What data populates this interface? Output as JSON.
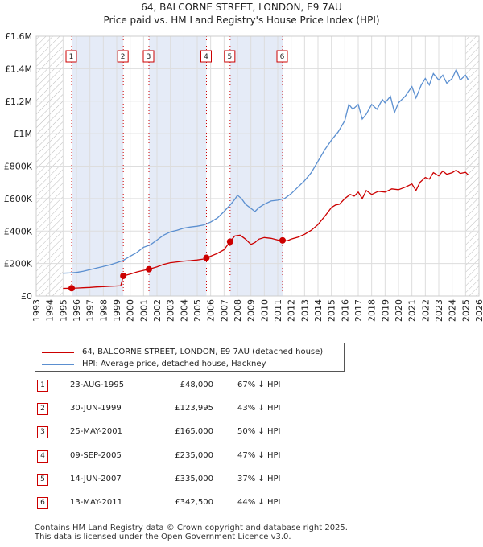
{
  "title": {
    "line1": "64, BALCORNE STREET, LONDON, E9 7AU",
    "line2": "Price paid vs. HM Land Registry's House Price Index (HPI)"
  },
  "chart_data": {
    "type": "line",
    "title": "64, BALCORNE STREET, LONDON, E9 7AU — Price paid vs. HM Land Registry's House Price Index (HPI)",
    "xlim": [
      1993,
      2026
    ],
    "ylim": [
      0,
      1600000
    ],
    "yticks": [
      {
        "value": 0,
        "label": "£0"
      },
      {
        "value": 200000,
        "label": "£200K"
      },
      {
        "value": 400000,
        "label": "£400K"
      },
      {
        "value": 600000,
        "label": "£600K"
      },
      {
        "value": 800000,
        "label": "£800K"
      },
      {
        "value": 1000000,
        "label": "£1M"
      },
      {
        "value": 1200000,
        "label": "£1.2M"
      },
      {
        "value": 1400000,
        "label": "£1.4M"
      },
      {
        "value": 1600000,
        "label": "£1.6M"
      }
    ],
    "xticks": [
      "1993",
      "1994",
      "1995",
      "1996",
      "1997",
      "1998",
      "1999",
      "2000",
      "2001",
      "2002",
      "2003",
      "2004",
      "2005",
      "2006",
      "2007",
      "2008",
      "2009",
      "2010",
      "2011",
      "2012",
      "2013",
      "2014",
      "2015",
      "2016",
      "2017",
      "2018",
      "2019",
      "2020",
      "2021",
      "2022",
      "2023",
      "2024",
      "2025",
      "2026"
    ],
    "hatched_ranges": [
      [
        1993,
        1995
      ],
      [
        2025.0,
        2026
      ]
    ],
    "sale_shading": [
      [
        1995.64,
        1999.49
      ],
      [
        2001.4,
        2005.69
      ],
      [
        2007.45,
        2011.36
      ]
    ],
    "series": [
      {
        "name": "64, BALCORNE STREET, LONDON, E9 7AU (detached house)",
        "color": "#cc0000",
        "points": [
          [
            1995.0,
            47000
          ],
          [
            1995.64,
            48000
          ],
          [
            1996.0,
            49000
          ],
          [
            1996.5,
            51000
          ],
          [
            1997.0,
            53000
          ],
          [
            1997.5,
            56000
          ],
          [
            1998.0,
            58000
          ],
          [
            1998.5,
            60000
          ],
          [
            1999.0,
            62000
          ],
          [
            1999.3,
            63000
          ],
          [
            1999.49,
            123995
          ],
          [
            2000.0,
            135000
          ],
          [
            2000.5,
            148000
          ],
          [
            2001.0,
            158000
          ],
          [
            2001.4,
            165000
          ],
          [
            2002.0,
            180000
          ],
          [
            2002.5,
            195000
          ],
          [
            2003.0,
            205000
          ],
          [
            2003.5,
            210000
          ],
          [
            2004.0,
            215000
          ],
          [
            2004.5,
            218000
          ],
          [
            2005.0,
            222000
          ],
          [
            2005.5,
            228000
          ],
          [
            2005.69,
            235000
          ],
          [
            2006.0,
            245000
          ],
          [
            2006.5,
            262000
          ],
          [
            2007.0,
            285000
          ],
          [
            2007.45,
            335000
          ],
          [
            2007.8,
            370000
          ],
          [
            2008.2,
            375000
          ],
          [
            2008.6,
            350000
          ],
          [
            2009.0,
            318000
          ],
          [
            2009.3,
            330000
          ],
          [
            2009.6,
            350000
          ],
          [
            2010.0,
            360000
          ],
          [
            2010.5,
            355000
          ],
          [
            2011.0,
            345000
          ],
          [
            2011.36,
            342500
          ],
          [
            2011.7,
            340000
          ],
          [
            2012.0,
            350000
          ],
          [
            2012.5,
            362000
          ],
          [
            2013.0,
            380000
          ],
          [
            2013.5,
            405000
          ],
          [
            2014.0,
            440000
          ],
          [
            2014.5,
            490000
          ],
          [
            2015.0,
            545000
          ],
          [
            2015.3,
            560000
          ],
          [
            2015.6,
            565000
          ],
          [
            2016.0,
            600000
          ],
          [
            2016.4,
            625000
          ],
          [
            2016.7,
            615000
          ],
          [
            2017.0,
            640000
          ],
          [
            2017.3,
            600000
          ],
          [
            2017.6,
            650000
          ],
          [
            2018.0,
            625000
          ],
          [
            2018.5,
            645000
          ],
          [
            2019.0,
            640000
          ],
          [
            2019.5,
            660000
          ],
          [
            2020.0,
            655000
          ],
          [
            2020.5,
            670000
          ],
          [
            2021.0,
            690000
          ],
          [
            2021.3,
            650000
          ],
          [
            2021.6,
            700000
          ],
          [
            2022.0,
            730000
          ],
          [
            2022.3,
            720000
          ],
          [
            2022.6,
            760000
          ],
          [
            2023.0,
            740000
          ],
          [
            2023.3,
            770000
          ],
          [
            2023.6,
            750000
          ],
          [
            2024.0,
            760000
          ],
          [
            2024.3,
            775000
          ],
          [
            2024.6,
            755000
          ],
          [
            2025.0,
            762000
          ],
          [
            2025.2,
            745000
          ]
        ]
      },
      {
        "name": "HPI: Average price, detached house, Hackney",
        "color": "#5b8fd0",
        "points": [
          [
            1995.0,
            140000
          ],
          [
            1995.5,
            142000
          ],
          [
            1996.0,
            145000
          ],
          [
            1996.5,
            152000
          ],
          [
            1997.0,
            162000
          ],
          [
            1997.5,
            172000
          ],
          [
            1998.0,
            182000
          ],
          [
            1998.5,
            192000
          ],
          [
            1999.0,
            205000
          ],
          [
            1999.5,
            220000
          ],
          [
            2000.0,
            245000
          ],
          [
            2000.5,
            268000
          ],
          [
            2001.0,
            300000
          ],
          [
            2001.5,
            315000
          ],
          [
            2002.0,
            345000
          ],
          [
            2002.5,
            375000
          ],
          [
            2003.0,
            395000
          ],
          [
            2003.5,
            405000
          ],
          [
            2004.0,
            418000
          ],
          [
            2004.5,
            425000
          ],
          [
            2005.0,
            430000
          ],
          [
            2005.5,
            438000
          ],
          [
            2006.0,
            455000
          ],
          [
            2006.5,
            480000
          ],
          [
            2007.0,
            520000
          ],
          [
            2007.5,
            565000
          ],
          [
            2007.8,
            595000
          ],
          [
            2008.0,
            620000
          ],
          [
            2008.3,
            600000
          ],
          [
            2008.6,
            565000
          ],
          [
            2009.0,
            540000
          ],
          [
            2009.3,
            520000
          ],
          [
            2009.6,
            545000
          ],
          [
            2010.0,
            565000
          ],
          [
            2010.5,
            585000
          ],
          [
            2011.0,
            590000
          ],
          [
            2011.5,
            600000
          ],
          [
            2012.0,
            630000
          ],
          [
            2012.5,
            670000
          ],
          [
            2013.0,
            710000
          ],
          [
            2013.5,
            760000
          ],
          [
            2014.0,
            830000
          ],
          [
            2014.5,
            900000
          ],
          [
            2015.0,
            960000
          ],
          [
            2015.5,
            1010000
          ],
          [
            2016.0,
            1080000
          ],
          [
            2016.3,
            1180000
          ],
          [
            2016.6,
            1150000
          ],
          [
            2017.0,
            1180000
          ],
          [
            2017.3,
            1090000
          ],
          [
            2017.6,
            1120000
          ],
          [
            2018.0,
            1180000
          ],
          [
            2018.4,
            1150000
          ],
          [
            2018.8,
            1210000
          ],
          [
            2019.0,
            1190000
          ],
          [
            2019.4,
            1230000
          ],
          [
            2019.7,
            1130000
          ],
          [
            2020.0,
            1190000
          ],
          [
            2020.5,
            1230000
          ],
          [
            2021.0,
            1290000
          ],
          [
            2021.3,
            1220000
          ],
          [
            2021.7,
            1300000
          ],
          [
            2022.0,
            1340000
          ],
          [
            2022.3,
            1300000
          ],
          [
            2022.6,
            1370000
          ],
          [
            2023.0,
            1330000
          ],
          [
            2023.3,
            1360000
          ],
          [
            2023.6,
            1310000
          ],
          [
            2024.0,
            1340000
          ],
          [
            2024.3,
            1395000
          ],
          [
            2024.6,
            1330000
          ],
          [
            2025.0,
            1360000
          ],
          [
            2025.2,
            1330000
          ]
        ]
      }
    ],
    "sales": [
      {
        "label": "1",
        "x": 1995.64,
        "y": 48000
      },
      {
        "label": "2",
        "x": 1999.49,
        "y": 123995
      },
      {
        "label": "3",
        "x": 2001.4,
        "y": 165000
      },
      {
        "label": "4",
        "x": 2005.69,
        "y": 235000
      },
      {
        "label": "5",
        "x": 2007.45,
        "y": 335000
      },
      {
        "label": "6",
        "x": 2011.36,
        "y": 342500
      }
    ]
  },
  "legend": {
    "property": "64, BALCORNE STREET, LONDON, E9 7AU (detached house)",
    "hpi": "HPI: Average price, detached house, Hackney",
    "property_color": "#cc0000",
    "hpi_color": "#5b8fd0"
  },
  "sales_table": [
    {
      "num": "1",
      "date": "23-AUG-1995",
      "price": "£48,000",
      "pct": "67% ↓ HPI"
    },
    {
      "num": "2",
      "date": "30-JUN-1999",
      "price": "£123,995",
      "pct": "43% ↓ HPI"
    },
    {
      "num": "3",
      "date": "25-MAY-2001",
      "price": "£165,000",
      "pct": "50% ↓ HPI"
    },
    {
      "num": "4",
      "date": "09-SEP-2005",
      "price": "£235,000",
      "pct": "47% ↓ HPI"
    },
    {
      "num": "5",
      "date": "14-JUN-2007",
      "price": "£335,000",
      "pct": "37% ↓ HPI"
    },
    {
      "num": "6",
      "date": "13-MAY-2011",
      "price": "£342,500",
      "pct": "44% ↓ HPI"
    }
  ],
  "footer": {
    "line1": "Contains HM Land Registry data © Crown copyright and database right 2025.",
    "line2": "This data is licensed under the Open Government Licence v3.0."
  }
}
